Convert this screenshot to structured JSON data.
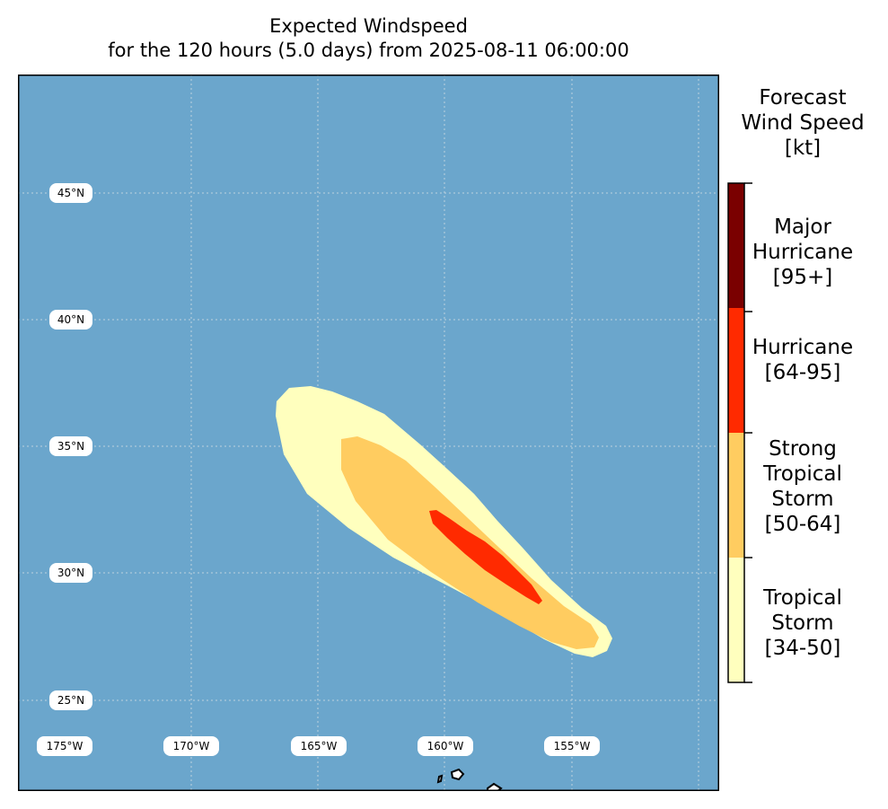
{
  "title": {
    "line1": "Expected Windspeed",
    "line2": "for the 120 hours (5.0 days) from 2025-08-11 06:00:00"
  },
  "map": {
    "ocean_color": "#6ba6cc",
    "land_color": "#ffffff",
    "lat_labels": [
      "45°N",
      "40°N",
      "35°N",
      "30°N",
      "25°N"
    ],
    "lon_labels": [
      "175°W",
      "170°W",
      "165°W",
      "160°W",
      "155°W"
    ]
  },
  "colorbar": {
    "title_lines": [
      "Forecast",
      "Wind Speed",
      "[kt]"
    ],
    "categories": [
      {
        "lines": [
          "Major",
          "Hurricane",
          "[95+]"
        ],
        "color": "#7a0000"
      },
      {
        "lines": [
          "Hurricane",
          "[64-95]"
        ],
        "color": "#ff2a00"
      },
      {
        "lines": [
          "Strong",
          "Tropical",
          "Storm",
          "[50-64]"
        ],
        "color": "#ffcc60"
      },
      {
        "lines": [
          "Tropical",
          "Storm",
          "[34-50]"
        ],
        "color": "#ffffbe"
      }
    ]
  }
}
